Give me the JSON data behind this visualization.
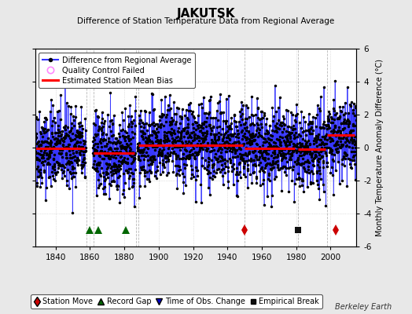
{
  "title": "JAKUTSK",
  "subtitle": "Difference of Station Temperature Data from Regional Average",
  "ylabel": "Monthly Temperature Anomaly Difference (°C)",
  "xlabel_years": [
    1840,
    1860,
    1880,
    1900,
    1920,
    1940,
    1960,
    1980,
    2000
  ],
  "ylim": [
    -6,
    6
  ],
  "xlim": [
    1828,
    2015
  ],
  "bg_color": "#e8e8e8",
  "plot_bg_color": "#ffffff",
  "grid_color": "#c8c8c8",
  "watermark": "Berkeley Earth",
  "bias_segments": [
    {
      "x_start": 1828,
      "x_end": 1857,
      "bias": -0.05
    },
    {
      "x_start": 1862,
      "x_end": 1886,
      "bias": -0.35
    },
    {
      "x_start": 1888,
      "x_end": 1949,
      "bias": 0.15
    },
    {
      "x_start": 1950,
      "x_end": 1979,
      "bias": -0.05
    },
    {
      "x_start": 1981,
      "x_end": 1997,
      "bias": -0.1
    },
    {
      "x_start": 1998,
      "x_end": 2014,
      "bias": 0.75
    }
  ],
  "gaps": [
    {
      "x_start": 1857.5,
      "x_end": 1861.5
    },
    {
      "x_start": 1886.5,
      "x_end": 1887.5
    }
  ],
  "station_moves": [
    1950,
    2003
  ],
  "record_gaps": [
    1860,
    1865,
    1881
  ],
  "obs_changes": [],
  "empirical_breaks": [
    1981
  ],
  "break_lines": [
    1858,
    1862,
    1887,
    1888,
    1950,
    1981,
    1998
  ],
  "seed": 42,
  "noise_std": 1.2,
  "line_color": "#3333ff",
  "stem_color": "#5555ff",
  "dot_color": "#000000",
  "bias_color": "#ff0000",
  "station_move_color": "#cc0000",
  "record_gap_color": "#006600",
  "obs_change_color": "#0000cc",
  "empirical_break_color": "#111111",
  "qc_failed_color": "#ff88ff"
}
